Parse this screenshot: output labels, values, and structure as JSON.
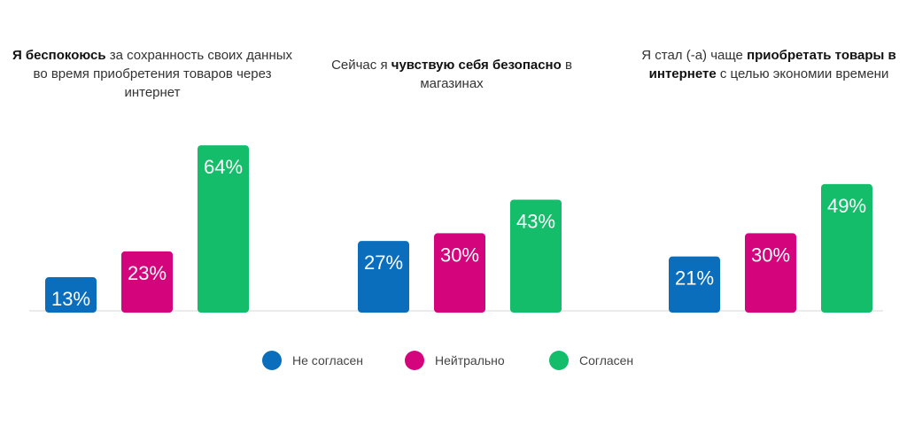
{
  "colors": {
    "disagree": "#0a6ebd",
    "neutral": "#d4047c",
    "agree": "#14bd6a",
    "baseline": "#d7d7d7"
  },
  "chart_data": {
    "type": "bar",
    "ylim": [
      0,
      100
    ],
    "series_names": [
      "Не согласен",
      "Нейтрально",
      "Согласен"
    ],
    "groups": [
      {
        "title_parts": [
          {
            "text": "Я беспокоюсь",
            "bold": true
          },
          {
            "text": " за сохранность своих данных во время приобретения товаров через интернет",
            "bold": false
          }
        ],
        "values": [
          13,
          23,
          64
        ],
        "labels": [
          "13%",
          "23%",
          "64%"
        ]
      },
      {
        "title_parts": [
          {
            "text": "Сейчас я ",
            "bold": false
          },
          {
            "text": "чувствую себя безопасно",
            "bold": true
          },
          {
            "text": " в магазинах",
            "bold": false
          }
        ],
        "values": [
          27,
          30,
          43
        ],
        "labels": [
          "27%",
          "30%",
          "43%"
        ]
      },
      {
        "title_parts": [
          {
            "text": "Я стал (-а) чаще ",
            "bold": false
          },
          {
            "text": "приобретать товары в интернете",
            "bold": true
          },
          {
            "text": " с целью экономии времени",
            "bold": false
          }
        ],
        "values": [
          21,
          30,
          49
        ],
        "labels": [
          "21%",
          "30%",
          "49%"
        ]
      }
    ]
  },
  "legend": [
    {
      "label": "Не согласен",
      "color_key": "disagree"
    },
    {
      "label": "Нейтрально",
      "color_key": "neutral"
    },
    {
      "label": "Согласен",
      "color_key": "agree"
    }
  ]
}
